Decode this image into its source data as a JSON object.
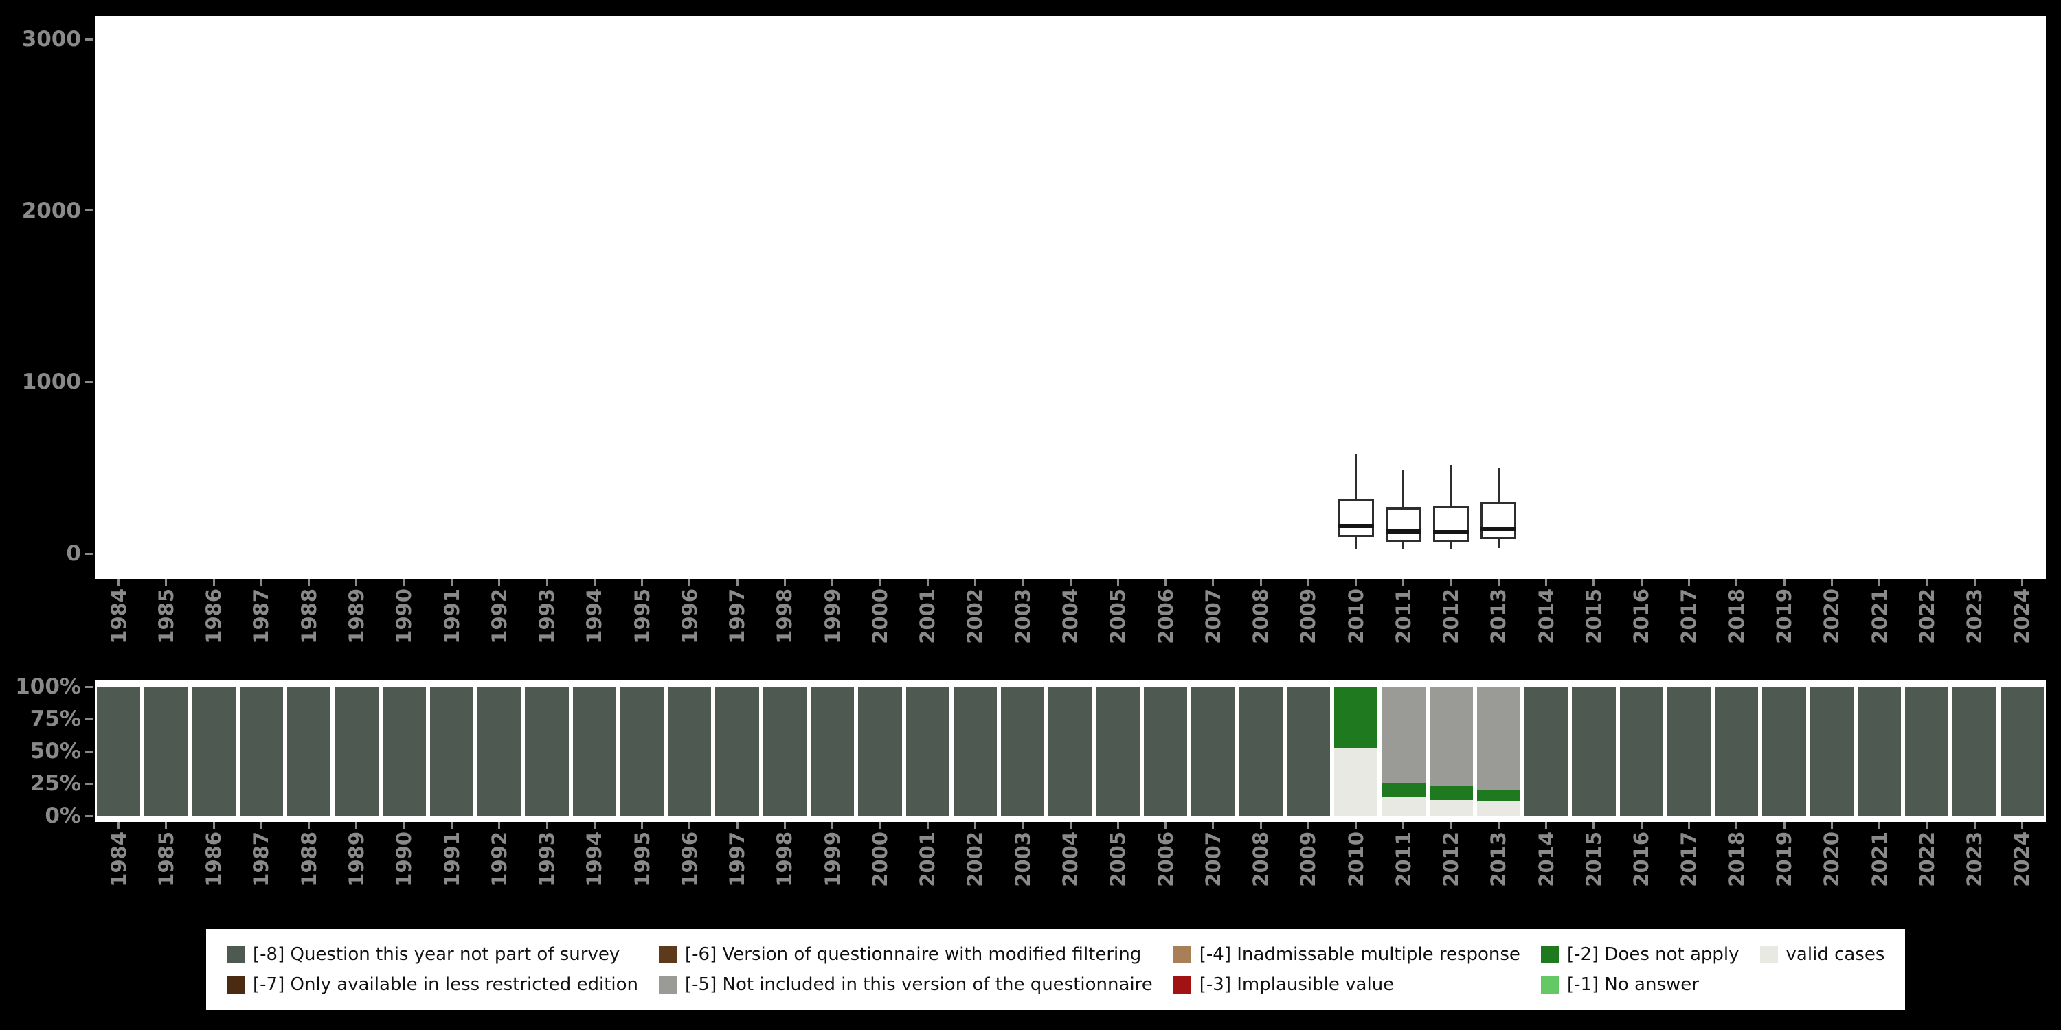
{
  "page": {
    "background": "#000000",
    "panel_background": "#ffffff",
    "axis_text_color": "#8a8a8a",
    "boxplot_color": "#2e2e2e",
    "median_color": "#151515"
  },
  "palette": {
    "neg8": "#4e5a51",
    "neg7": "#4a2a10",
    "neg6": "#5e3a1c",
    "neg5": "#9a9a97",
    "neg4": "#a87f56",
    "neg3": "#a11212",
    "neg2": "#1f7a1f",
    "neg1": "#64c864",
    "valid": "#e9e9e4"
  },
  "years": [
    "1984",
    "1985",
    "1986",
    "1987",
    "1988",
    "1989",
    "1990",
    "1991",
    "1992",
    "1993",
    "1994",
    "1995",
    "1996",
    "1997",
    "1998",
    "1999",
    "2000",
    "2001",
    "2002",
    "2003",
    "2004",
    "2005",
    "2006",
    "2007",
    "2008",
    "2009",
    "2010",
    "2011",
    "2012",
    "2013",
    "2014",
    "2015",
    "2016",
    "2017",
    "2018",
    "2019",
    "2020",
    "2021",
    "2022",
    "2023",
    "2024"
  ],
  "chart_data": [
    {
      "type": "boxplot",
      "title": "",
      "xlabel": "",
      "ylabel": "",
      "ylim": [
        0,
        3000
      ],
      "yticks": [
        0,
        1000,
        2000,
        3000
      ],
      "x_axis": "years 1984-2024, categorical, shared with lower panel",
      "grid": "off",
      "boxes": [
        {
          "year": "2010",
          "whisker_low": 30,
          "q1": 95,
          "median": 160,
          "q3": 320,
          "whisker_high": 580
        },
        {
          "year": "2011",
          "whisker_low": 25,
          "q1": 70,
          "median": 130,
          "q3": 270,
          "whisker_high": 485
        },
        {
          "year": "2012",
          "whisker_low": 25,
          "q1": 70,
          "median": 125,
          "q3": 275,
          "whisker_high": 515
        },
        {
          "year": "2013",
          "whisker_low": 30,
          "q1": 85,
          "median": 145,
          "q3": 300,
          "whisker_high": 500
        }
      ]
    },
    {
      "type": "stacked_bar",
      "title": "",
      "unit": "percent",
      "ylim": [
        0,
        100
      ],
      "yticks": [
        "100%",
        "75%",
        "50%",
        "25%",
        "0%"
      ],
      "grid": "off",
      "segment_order": "bottom-to-top",
      "bars": [
        {
          "year": "1984",
          "segments": [
            {
              "key": "neg8",
              "pct": 100
            }
          ]
        },
        {
          "year": "1985",
          "segments": [
            {
              "key": "neg8",
              "pct": 100
            }
          ]
        },
        {
          "year": "1986",
          "segments": [
            {
              "key": "neg8",
              "pct": 100
            }
          ]
        },
        {
          "year": "1987",
          "segments": [
            {
              "key": "neg8",
              "pct": 100
            }
          ]
        },
        {
          "year": "1988",
          "segments": [
            {
              "key": "neg8",
              "pct": 100
            }
          ]
        },
        {
          "year": "1989",
          "segments": [
            {
              "key": "neg8",
              "pct": 100
            }
          ]
        },
        {
          "year": "1990",
          "segments": [
            {
              "key": "neg8",
              "pct": 100
            }
          ]
        },
        {
          "year": "1991",
          "segments": [
            {
              "key": "neg8",
              "pct": 100
            }
          ]
        },
        {
          "year": "1992",
          "segments": [
            {
              "key": "neg8",
              "pct": 100
            }
          ]
        },
        {
          "year": "1993",
          "segments": [
            {
              "key": "neg8",
              "pct": 100
            }
          ]
        },
        {
          "year": "1994",
          "segments": [
            {
              "key": "neg8",
              "pct": 100
            }
          ]
        },
        {
          "year": "1995",
          "segments": [
            {
              "key": "neg8",
              "pct": 100
            }
          ]
        },
        {
          "year": "1996",
          "segments": [
            {
              "key": "neg8",
              "pct": 100
            }
          ]
        },
        {
          "year": "1997",
          "segments": [
            {
              "key": "neg8",
              "pct": 100
            }
          ]
        },
        {
          "year": "1998",
          "segments": [
            {
              "key": "neg8",
              "pct": 100
            }
          ]
        },
        {
          "year": "1999",
          "segments": [
            {
              "key": "neg8",
              "pct": 100
            }
          ]
        },
        {
          "year": "2000",
          "segments": [
            {
              "key": "neg8",
              "pct": 100
            }
          ]
        },
        {
          "year": "2001",
          "segments": [
            {
              "key": "neg8",
              "pct": 100
            }
          ]
        },
        {
          "year": "2002",
          "segments": [
            {
              "key": "neg8",
              "pct": 100
            }
          ]
        },
        {
          "year": "2003",
          "segments": [
            {
              "key": "neg8",
              "pct": 100
            }
          ]
        },
        {
          "year": "2004",
          "segments": [
            {
              "key": "neg8",
              "pct": 100
            }
          ]
        },
        {
          "year": "2005",
          "segments": [
            {
              "key": "neg8",
              "pct": 100
            }
          ]
        },
        {
          "year": "2006",
          "segments": [
            {
              "key": "neg8",
              "pct": 100
            }
          ]
        },
        {
          "year": "2007",
          "segments": [
            {
              "key": "neg8",
              "pct": 100
            }
          ]
        },
        {
          "year": "2008",
          "segments": [
            {
              "key": "neg8",
              "pct": 100
            }
          ]
        },
        {
          "year": "2009",
          "segments": [
            {
              "key": "neg8",
              "pct": 100
            }
          ]
        },
        {
          "year": "2010",
          "segments": [
            {
              "key": "valid",
              "pct": 52
            },
            {
              "key": "neg2",
              "pct": 48
            }
          ]
        },
        {
          "year": "2011",
          "segments": [
            {
              "key": "valid",
              "pct": 15
            },
            {
              "key": "neg2",
              "pct": 10
            },
            {
              "key": "neg5",
              "pct": 75
            }
          ]
        },
        {
          "year": "2012",
          "segments": [
            {
              "key": "valid",
              "pct": 12
            },
            {
              "key": "neg2",
              "pct": 11
            },
            {
              "key": "neg5",
              "pct": 77
            }
          ]
        },
        {
          "year": "2013",
          "segments": [
            {
              "key": "valid",
              "pct": 11
            },
            {
              "key": "neg2",
              "pct": 9
            },
            {
              "key": "neg5",
              "pct": 80
            }
          ]
        },
        {
          "year": "2014",
          "segments": [
            {
              "key": "neg8",
              "pct": 100
            }
          ]
        },
        {
          "year": "2015",
          "segments": [
            {
              "key": "neg8",
              "pct": 100
            }
          ]
        },
        {
          "year": "2016",
          "segments": [
            {
              "key": "neg8",
              "pct": 100
            }
          ]
        },
        {
          "year": "2017",
          "segments": [
            {
              "key": "neg8",
              "pct": 100
            }
          ]
        },
        {
          "year": "2018",
          "segments": [
            {
              "key": "neg8",
              "pct": 100
            }
          ]
        },
        {
          "year": "2019",
          "segments": [
            {
              "key": "neg8",
              "pct": 100
            }
          ]
        },
        {
          "year": "2020",
          "segments": [
            {
              "key": "neg8",
              "pct": 100
            }
          ]
        },
        {
          "year": "2021",
          "segments": [
            {
              "key": "neg8",
              "pct": 100
            }
          ]
        },
        {
          "year": "2022",
          "segments": [
            {
              "key": "neg8",
              "pct": 100
            }
          ]
        },
        {
          "year": "2023",
          "segments": [
            {
              "key": "neg8",
              "pct": 100
            }
          ]
        },
        {
          "year": "2024",
          "segments": [
            {
              "key": "neg8",
              "pct": 100
            }
          ]
        }
      ]
    }
  ],
  "legend": {
    "position": "bottom",
    "items": [
      {
        "key": "neg8",
        "label": "[-8] Question this year not part of survey"
      },
      {
        "key": "neg6",
        "label": "[-6] Version of questionnaire with modified filtering"
      },
      {
        "key": "neg4",
        "label": "[-4] Inadmissable multiple response"
      },
      {
        "key": "neg2",
        "label": "[-2] Does not apply"
      },
      {
        "key": "valid",
        "label": "valid cases"
      },
      {
        "key": "neg7",
        "label": "[-7] Only available in less restricted edition"
      },
      {
        "key": "neg5",
        "label": "[-5] Not included in this version of the questionnaire"
      },
      {
        "key": "neg3",
        "label": "[-3] Implausible value"
      },
      {
        "key": "neg1",
        "label": "[-1] No answer"
      }
    ]
  }
}
